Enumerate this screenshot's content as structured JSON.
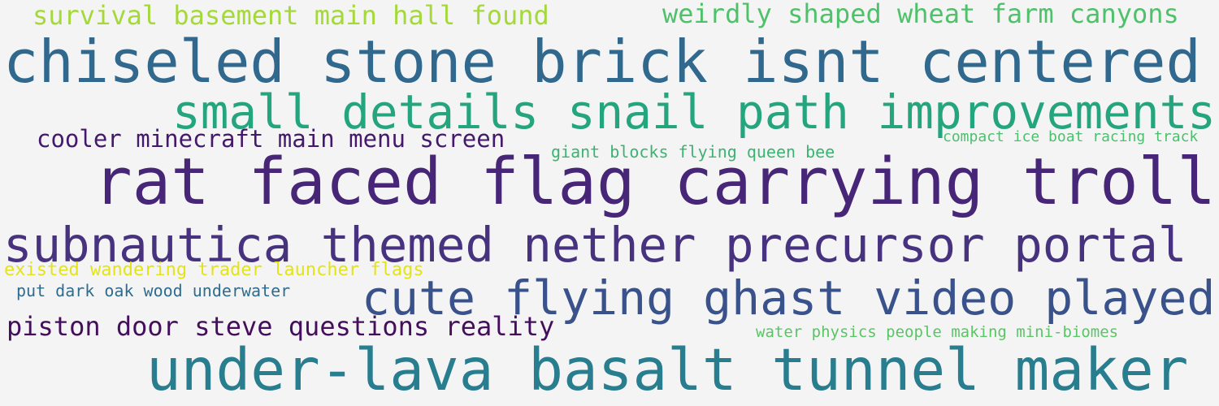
{
  "background": "#f4f4f4",
  "phrases": [
    {
      "text": "survival basement main hall found",
      "color": "#a5d93a"
    },
    {
      "text": "weirdly shaped wheat farm canyons",
      "color": "#4fc16a"
    },
    {
      "text": "chiseled stone brick isnt centered",
      "color": "#31688e"
    },
    {
      "text": "small details snail path improvements",
      "color": "#25a57e"
    },
    {
      "text": "cooler minecraft main menu screen",
      "color": "#44196b"
    },
    {
      "text": "compact ice boat racing track",
      "color": "#4ac16d"
    },
    {
      "text": "giant blocks flying queen bee",
      "color": "#3bb373"
    },
    {
      "text": "rat faced flag carrying troll",
      "color": "#482677"
    },
    {
      "text": "subnautica themed nether precursor portal",
      "color": "#46327e"
    },
    {
      "text": "existed wandering trader launcher flags",
      "color": "#e2e419"
    },
    {
      "text": "put dark oak wood underwater",
      "color": "#2f6c8e"
    },
    {
      "text": "cute flying ghast video played",
      "color": "#3a528b"
    },
    {
      "text": "piston door steve questions reality",
      "color": "#440e5d"
    },
    {
      "text": "water physics people making mini-biomes",
      "color": "#58c665"
    },
    {
      "text": "under-lava basalt tunnel maker",
      "color": "#287d8e"
    }
  ]
}
